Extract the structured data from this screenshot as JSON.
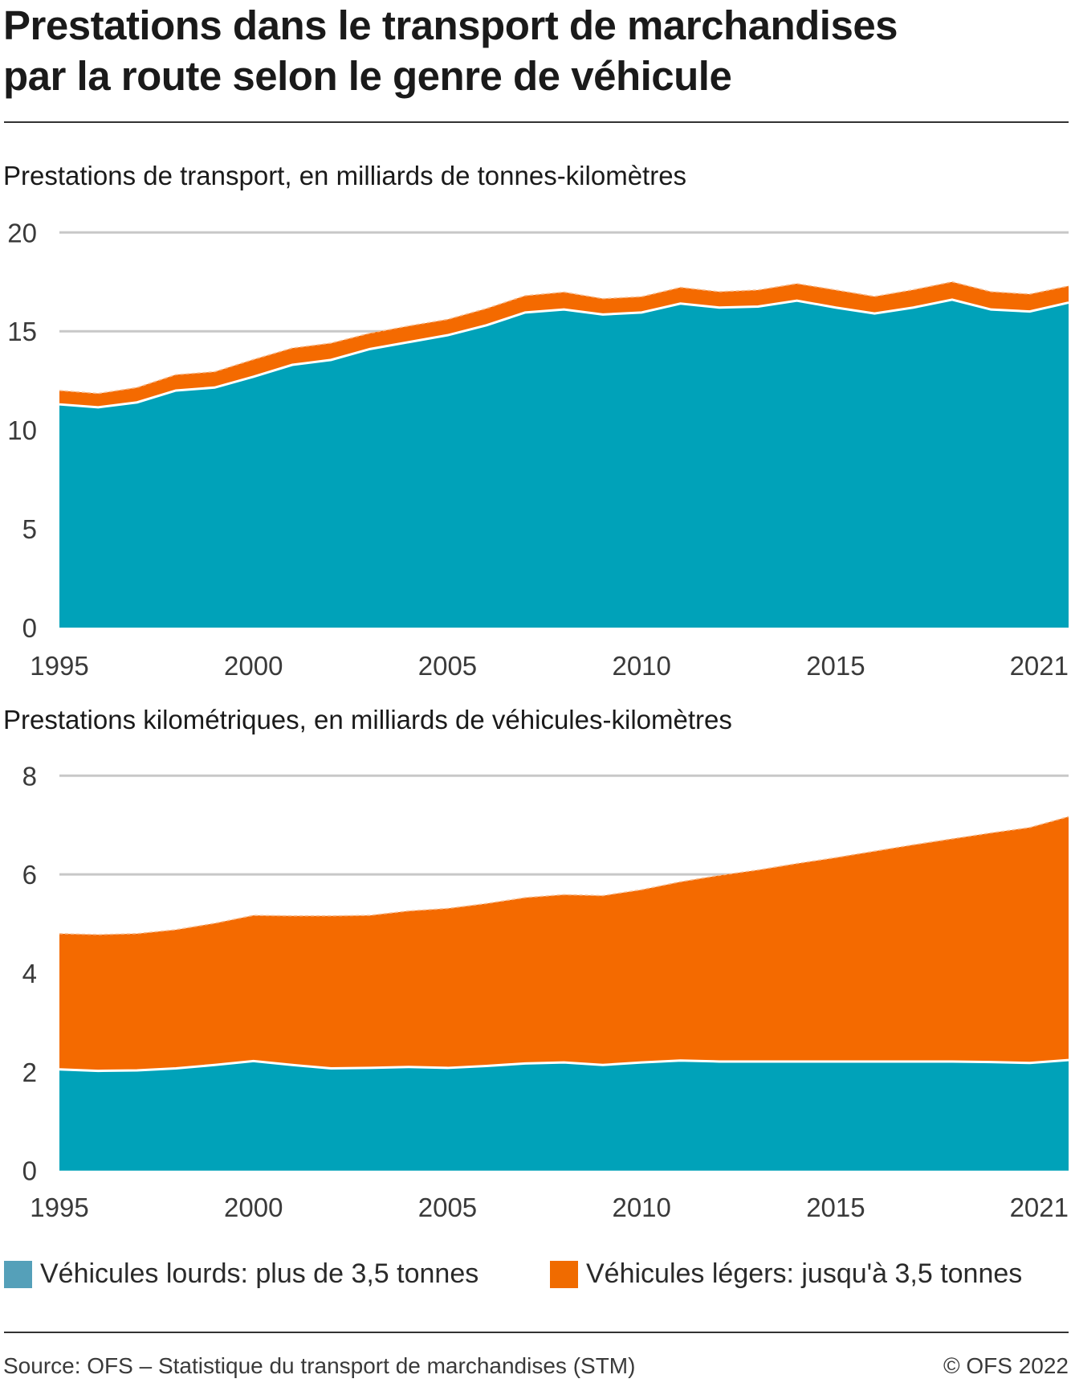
{
  "header": {
    "title_line1": "Prestations dans le transport de marchandises",
    "title_line2": "par la route selon le genre de véhicule"
  },
  "legend": [
    {
      "label": "Véhicules lourds: plus de 3,5 tonnes",
      "color": "#55a0b9"
    },
    {
      "label": "Véhicules légers: jusqu'à 3,5 tonnes",
      "color": "#f06b00"
    }
  ],
  "colors": {
    "heavy": "#00a2b9",
    "light": "#f46a00",
    "grid": "#c8c8c8",
    "separator": "#ffffff"
  },
  "footer": {
    "source": "Source: OFS – Statistique du transport de marchandises (STM)",
    "copyright": "© OFS 2022"
  },
  "chart_data": [
    {
      "type": "area",
      "stacked": true,
      "title": "Prestations de transport, en milliards de tonnes-kilomètres",
      "xlabel": "",
      "ylabel": "",
      "x": [
        1995,
        1996,
        1997,
        1998,
        1999,
        2000,
        2001,
        2002,
        2003,
        2004,
        2005,
        2006,
        2007,
        2008,
        2009,
        2010,
        2011,
        2012,
        2013,
        2014,
        2015,
        2016,
        2017,
        2018,
        2019,
        2020,
        2021
      ],
      "xticks": [
        "1995",
        "2000",
        "2005",
        "2010",
        "2015",
        "2021"
      ],
      "yticks": [
        "0",
        "5",
        "10",
        "15",
        "20"
      ],
      "ylim": [
        0,
        20
      ],
      "grid": true,
      "series": [
        {
          "name": "Véhicules lourds: plus de 3,5 tonnes",
          "values": [
            11.3,
            11.15,
            11.4,
            12.0,
            12.15,
            12.7,
            13.3,
            13.55,
            14.1,
            14.45,
            14.8,
            15.3,
            15.95,
            16.1,
            15.85,
            15.95,
            16.4,
            16.2,
            16.25,
            16.55,
            16.2,
            15.9,
            16.2,
            16.6,
            16.1,
            16.0,
            16.45
          ]
        },
        {
          "name": "Véhicules légers: jusqu'à 3,5 tonnes",
          "values": [
            0.7,
            0.7,
            0.75,
            0.8,
            0.8,
            0.87,
            0.85,
            0.85,
            0.8,
            0.82,
            0.8,
            0.85,
            0.85,
            0.88,
            0.8,
            0.8,
            0.82,
            0.8,
            0.84,
            0.86,
            0.89,
            0.86,
            0.9,
            0.9,
            0.9,
            0.88,
            0.84
          ]
        }
      ]
    },
    {
      "type": "area",
      "stacked": true,
      "title": "Prestations kilométriques, en milliards de véhicules-kilomètres",
      "xlabel": "",
      "ylabel": "",
      "x": [
        1995,
        1996,
        1997,
        1998,
        1999,
        2000,
        2001,
        2002,
        2003,
        2004,
        2005,
        2006,
        2007,
        2008,
        2009,
        2010,
        2011,
        2012,
        2013,
        2014,
        2015,
        2016,
        2017,
        2018,
        2019,
        2020,
        2021
      ],
      "xticks": [
        "1995",
        "2000",
        "2005",
        "2010",
        "2015",
        "2021"
      ],
      "yticks": [
        "0",
        "2",
        "4",
        "6",
        "8"
      ],
      "ylim": [
        0,
        8
      ],
      "grid": true,
      "series": [
        {
          "name": "Véhicules lourds: plus de 3,5 tonnes",
          "values": [
            2.05,
            2.02,
            2.03,
            2.07,
            2.14,
            2.22,
            2.14,
            2.07,
            2.08,
            2.1,
            2.08,
            2.12,
            2.17,
            2.19,
            2.14,
            2.19,
            2.23,
            2.21,
            2.21,
            2.21,
            2.21,
            2.21,
            2.21,
            2.21,
            2.2,
            2.18,
            2.24
          ]
        },
        {
          "name": "Véhicules légers: jusqu'à 3,5 tonnes",
          "values": [
            2.75,
            2.76,
            2.77,
            2.81,
            2.87,
            2.95,
            3.02,
            3.09,
            3.09,
            3.16,
            3.23,
            3.29,
            3.36,
            3.4,
            3.43,
            3.5,
            3.62,
            3.77,
            3.88,
            4.01,
            4.13,
            4.26,
            4.39,
            4.51,
            4.64,
            4.77,
            4.93
          ]
        }
      ]
    }
  ]
}
